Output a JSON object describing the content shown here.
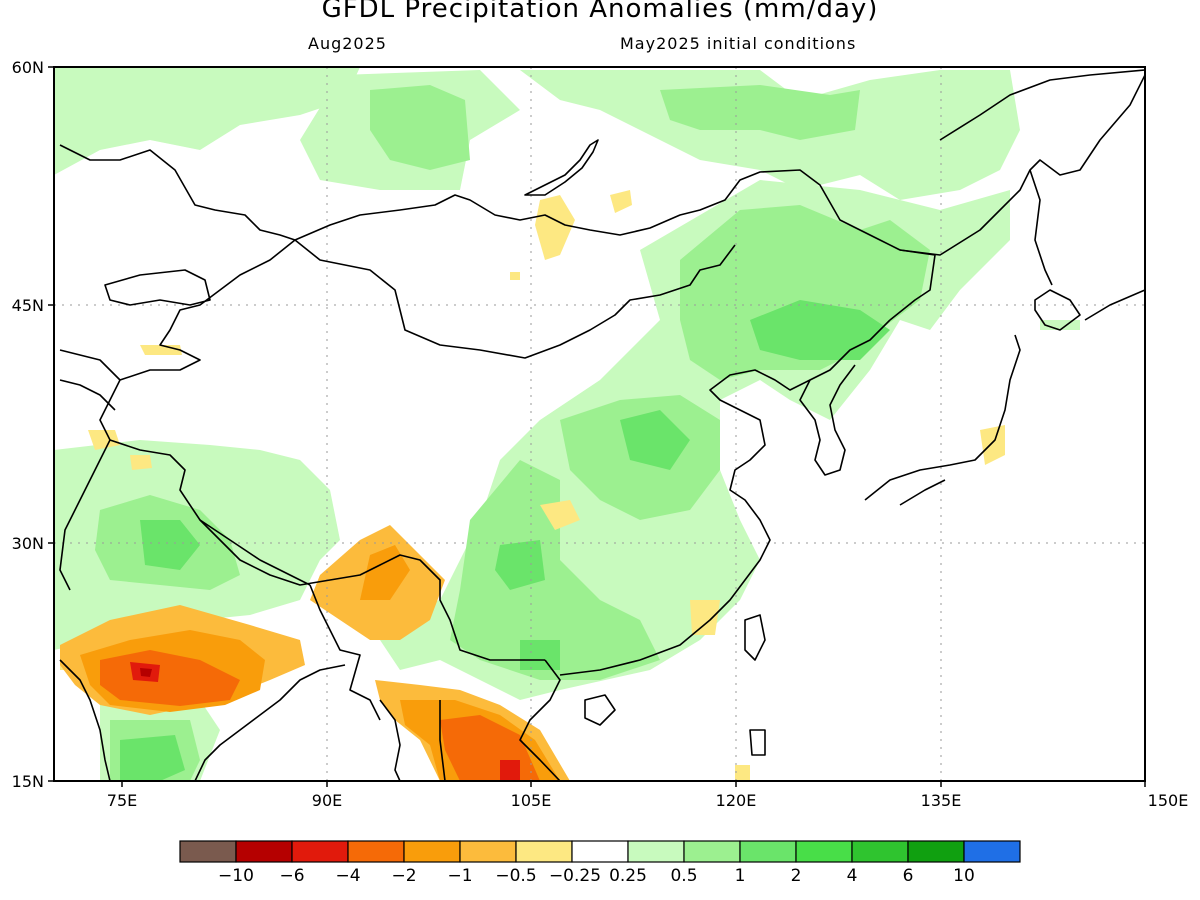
{
  "title": "GFDL Precipitation Anomalies (mm/day)",
  "valid_month": "Aug2025",
  "init_conditions": "May2025 initial conditions",
  "axes": {
    "lon_ticks": [
      {
        "label": "75E",
        "value": 75
      },
      {
        "label": "90E",
        "value": 90
      },
      {
        "label": "105E",
        "value": 105
      },
      {
        "label": "120E",
        "value": 120
      },
      {
        "label": "135E",
        "value": 135
      },
      {
        "label": "150E",
        "value": 150
      }
    ],
    "lat_ticks": [
      {
        "label": "60N",
        "value": 60
      },
      {
        "label": "45N",
        "value": 45
      },
      {
        "label": "30N",
        "value": 30
      },
      {
        "label": "15N",
        "value": 15
      }
    ],
    "lon_range": [
      70,
      150
    ],
    "lat_range": [
      15,
      60
    ],
    "grid": "dotted"
  },
  "legend": {
    "colors": [
      "#7a5a4e",
      "#b50000",
      "#e11a0c",
      "#f56a07",
      "#f99d0b",
      "#fcbb3c",
      "#fde882",
      "#ffffff",
      "#c8fabe",
      "#9cf090",
      "#6ae46a",
      "#48de48",
      "#2fc42f",
      "#10a010",
      "#1f6fe6"
    ],
    "labels": [
      "−10",
      "−6",
      "−4",
      "−2",
      "−1",
      "−0.5",
      "−0.25",
      "0.25",
      "0.5",
      "1",
      "2",
      "4",
      "6",
      "10"
    ]
  }
}
